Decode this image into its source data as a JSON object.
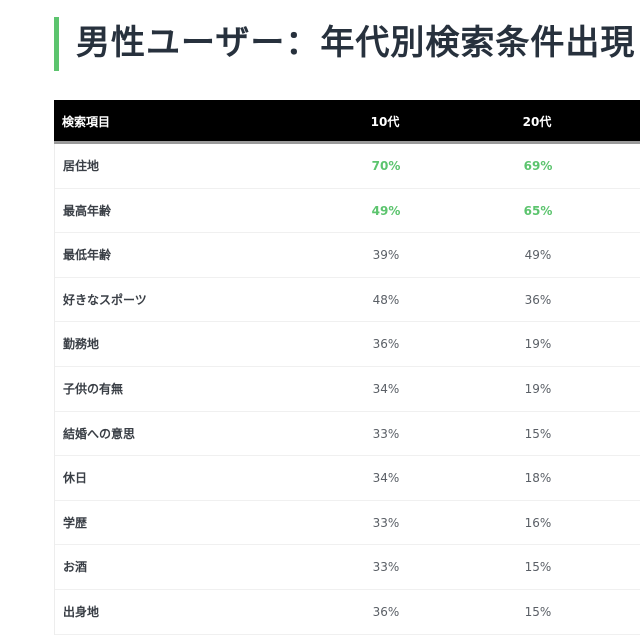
{
  "title": {
    "text": "男性ユーザー：年代別検索条件出現",
    "accent_color": "#5cc46e"
  },
  "table": {
    "headers": [
      "検索項目",
      "10代",
      "20代"
    ],
    "highlight_color": "#5cc46e",
    "rows": [
      {
        "label": "居住地",
        "teens": "70%",
        "twenties": "69%",
        "highlight": true
      },
      {
        "label": "最高年齢",
        "teens": "49%",
        "twenties": "65%",
        "highlight": true
      },
      {
        "label": "最低年齢",
        "teens": "39%",
        "twenties": "49%",
        "highlight": false
      },
      {
        "label": "好きなスポーツ",
        "teens": "48%",
        "twenties": "36%",
        "highlight": false
      },
      {
        "label": "勤務地",
        "teens": "36%",
        "twenties": "19%",
        "highlight": false
      },
      {
        "label": "子供の有無",
        "teens": "34%",
        "twenties": "19%",
        "highlight": false
      },
      {
        "label": "結婚への意思",
        "teens": "33%",
        "twenties": "15%",
        "highlight": false
      },
      {
        "label": "休日",
        "teens": "34%",
        "twenties": "18%",
        "highlight": false
      },
      {
        "label": "学歴",
        "teens": "33%",
        "twenties": "16%",
        "highlight": false
      },
      {
        "label": "お酒",
        "teens": "33%",
        "twenties": "15%",
        "highlight": false
      },
      {
        "label": "出身地",
        "teens": "36%",
        "twenties": "15%",
        "highlight": false
      }
    ]
  }
}
